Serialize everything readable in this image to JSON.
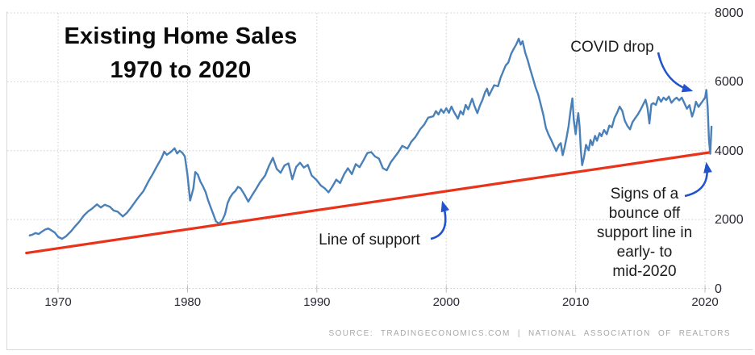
{
  "title": {
    "line1": "Existing Home Sales",
    "line2": "1970 to 2020"
  },
  "annotations": {
    "covid": "COVID drop",
    "support": "Line of support",
    "bounce": "Signs of a\nbounce off\nsupport line in\nearly- to\nmid-2020"
  },
  "source": "SOURCE: TRADINGECONOMICS.COM | NATIONAL ASSOCIATION OF REALTORS",
  "colors": {
    "series_blue": "#4a80b8",
    "support_red": "#e8331a",
    "arrow_blue": "#2153cc",
    "grid_gray": "#cccccc",
    "border_gray": "#d9d9d9",
    "tick_text": "#2b2733",
    "source_text": "#a8a8a8"
  },
  "chart_data": {
    "type": "line",
    "title": "Existing Home Sales 1970 to 2020",
    "xlabel": "",
    "ylabel": "",
    "x_ticks": [
      1970,
      1980,
      1990,
      2000,
      2010,
      2020
    ],
    "y_ticks": [
      0,
      2000,
      4000,
      6000,
      8000
    ],
    "xlim": [
      1966.07,
      2020.37
    ],
    "ylim": [
      0,
      8000
    ],
    "grid": "dotted",
    "legend": "none",
    "series": [
      {
        "name": "existing-home-sales",
        "points": [
          [
            1967.8,
            1540
          ],
          [
            1968.0,
            1560
          ],
          [
            1968.25,
            1610
          ],
          [
            1968.5,
            1580
          ],
          [
            1968.75,
            1650
          ],
          [
            1969.0,
            1710
          ],
          [
            1969.25,
            1740
          ],
          [
            1969.5,
            1680
          ],
          [
            1969.75,
            1620
          ],
          [
            1970.0,
            1500
          ],
          [
            1970.3,
            1440
          ],
          [
            1970.6,
            1510
          ],
          [
            1971.0,
            1660
          ],
          [
            1971.3,
            1800
          ],
          [
            1971.6,
            1920
          ],
          [
            1972.0,
            2120
          ],
          [
            1972.3,
            2230
          ],
          [
            1972.6,
            2310
          ],
          [
            1973.0,
            2440
          ],
          [
            1973.3,
            2350
          ],
          [
            1973.6,
            2430
          ],
          [
            1974.0,
            2370
          ],
          [
            1974.3,
            2260
          ],
          [
            1974.6,
            2230
          ],
          [
            1975.0,
            2090
          ],
          [
            1975.3,
            2190
          ],
          [
            1975.6,
            2330
          ],
          [
            1976.0,
            2540
          ],
          [
            1976.3,
            2690
          ],
          [
            1976.6,
            2830
          ],
          [
            1977.0,
            3120
          ],
          [
            1977.3,
            3310
          ],
          [
            1977.6,
            3520
          ],
          [
            1978.0,
            3790
          ],
          [
            1978.2,
            3970
          ],
          [
            1978.4,
            3880
          ],
          [
            1978.7,
            3960
          ],
          [
            1979.0,
            4070
          ],
          [
            1979.2,
            3920
          ],
          [
            1979.4,
            4000
          ],
          [
            1979.6,
            3940
          ],
          [
            1979.8,
            3830
          ],
          [
            1980.0,
            3300
          ],
          [
            1980.2,
            2550
          ],
          [
            1980.45,
            2900
          ],
          [
            1980.6,
            3380
          ],
          [
            1980.8,
            3300
          ],
          [
            1981.0,
            3100
          ],
          [
            1981.2,
            2960
          ],
          [
            1981.4,
            2800
          ],
          [
            1981.6,
            2550
          ],
          [
            1981.8,
            2350
          ],
          [
            1982.0,
            2150
          ],
          [
            1982.2,
            1950
          ],
          [
            1982.45,
            1880
          ],
          [
            1982.7,
            1990
          ],
          [
            1982.9,
            2160
          ],
          [
            1983.1,
            2480
          ],
          [
            1983.3,
            2650
          ],
          [
            1983.5,
            2760
          ],
          [
            1983.7,
            2830
          ],
          [
            1983.9,
            2950
          ],
          [
            1984.1,
            2910
          ],
          [
            1984.4,
            2730
          ],
          [
            1984.7,
            2520
          ],
          [
            1985.0,
            2710
          ],
          [
            1985.3,
            2890
          ],
          [
            1985.6,
            3080
          ],
          [
            1986.0,
            3280
          ],
          [
            1986.3,
            3560
          ],
          [
            1986.6,
            3790
          ],
          [
            1986.9,
            3470
          ],
          [
            1987.2,
            3360
          ],
          [
            1987.5,
            3570
          ],
          [
            1987.8,
            3630
          ],
          [
            1988.1,
            3170
          ],
          [
            1988.4,
            3530
          ],
          [
            1988.7,
            3650
          ],
          [
            1989.0,
            3510
          ],
          [
            1989.3,
            3590
          ],
          [
            1989.6,
            3280
          ],
          [
            1990.0,
            3140
          ],
          [
            1990.3,
            2990
          ],
          [
            1990.6,
            2910
          ],
          [
            1990.9,
            2790
          ],
          [
            1991.2,
            2960
          ],
          [
            1991.5,
            3160
          ],
          [
            1991.8,
            3060
          ],
          [
            1992.1,
            3310
          ],
          [
            1992.4,
            3490
          ],
          [
            1992.7,
            3320
          ],
          [
            1993.0,
            3610
          ],
          [
            1993.3,
            3520
          ],
          [
            1993.6,
            3720
          ],
          [
            1993.9,
            3930
          ],
          [
            1994.2,
            3960
          ],
          [
            1994.5,
            3830
          ],
          [
            1994.8,
            3770
          ],
          [
            1995.1,
            3490
          ],
          [
            1995.4,
            3430
          ],
          [
            1995.7,
            3660
          ],
          [
            1996.0,
            3810
          ],
          [
            1996.3,
            3960
          ],
          [
            1996.6,
            4140
          ],
          [
            1997.0,
            4060
          ],
          [
            1997.3,
            4260
          ],
          [
            1997.6,
            4390
          ],
          [
            1998.0,
            4630
          ],
          [
            1998.3,
            4760
          ],
          [
            1998.6,
            4960
          ],
          [
            1999.0,
            5000
          ],
          [
            1999.2,
            5150
          ],
          [
            1999.4,
            5050
          ],
          [
            1999.6,
            5200
          ],
          [
            1999.8,
            5100
          ],
          [
            2000.0,
            5230
          ],
          [
            2000.2,
            5100
          ],
          [
            2000.4,
            5280
          ],
          [
            2000.6,
            5120
          ],
          [
            2000.9,
            4930
          ],
          [
            2001.1,
            5150
          ],
          [
            2001.3,
            5050
          ],
          [
            2001.5,
            5330
          ],
          [
            2001.7,
            5200
          ],
          [
            2002.0,
            5510
          ],
          [
            2002.2,
            5280
          ],
          [
            2002.4,
            5090
          ],
          [
            2002.6,
            5310
          ],
          [
            2002.8,
            5480
          ],
          [
            2003.0,
            5700
          ],
          [
            2003.15,
            5800
          ],
          [
            2003.3,
            5600
          ],
          [
            2003.5,
            5750
          ],
          [
            2003.7,
            5900
          ],
          [
            2004.0,
            5870
          ],
          [
            2004.2,
            6120
          ],
          [
            2004.4,
            6300
          ],
          [
            2004.6,
            6480
          ],
          [
            2004.8,
            6560
          ],
          [
            2005.0,
            6800
          ],
          [
            2005.2,
            6950
          ],
          [
            2005.4,
            7080
          ],
          [
            2005.6,
            7250
          ],
          [
            2005.75,
            7080
          ],
          [
            2005.9,
            7180
          ],
          [
            2006.1,
            6850
          ],
          [
            2006.3,
            6620
          ],
          [
            2006.5,
            6350
          ],
          [
            2006.7,
            6100
          ],
          [
            2006.9,
            5840
          ],
          [
            2007.1,
            5640
          ],
          [
            2007.3,
            5340
          ],
          [
            2007.5,
            5040
          ],
          [
            2007.7,
            4660
          ],
          [
            2007.9,
            4470
          ],
          [
            2008.1,
            4320
          ],
          [
            2008.3,
            4150
          ],
          [
            2008.5,
            3990
          ],
          [
            2008.7,
            4160
          ],
          [
            2008.85,
            4220
          ],
          [
            2009.0,
            3870
          ],
          [
            2009.15,
            4100
          ],
          [
            2009.3,
            4380
          ],
          [
            2009.45,
            4700
          ],
          [
            2009.6,
            5140
          ],
          [
            2009.75,
            5520
          ],
          [
            2009.85,
            4900
          ],
          [
            2010.0,
            4480
          ],
          [
            2010.1,
            4820
          ],
          [
            2010.2,
            5090
          ],
          [
            2010.3,
            4710
          ],
          [
            2010.4,
            4010
          ],
          [
            2010.5,
            3580
          ],
          [
            2010.65,
            3820
          ],
          [
            2010.8,
            4170
          ],
          [
            2011.0,
            4010
          ],
          [
            2011.15,
            4310
          ],
          [
            2011.3,
            4160
          ],
          [
            2011.5,
            4430
          ],
          [
            2011.65,
            4290
          ],
          [
            2011.85,
            4510
          ],
          [
            2012.0,
            4420
          ],
          [
            2012.2,
            4600
          ],
          [
            2012.4,
            4480
          ],
          [
            2012.6,
            4730
          ],
          [
            2012.8,
            4680
          ],
          [
            2013.0,
            4950
          ],
          [
            2013.2,
            5100
          ],
          [
            2013.4,
            5280
          ],
          [
            2013.6,
            5160
          ],
          [
            2013.8,
            4870
          ],
          [
            2014.0,
            4720
          ],
          [
            2014.2,
            4620
          ],
          [
            2014.4,
            4830
          ],
          [
            2014.6,
            4940
          ],
          [
            2014.8,
            5050
          ],
          [
            2015.0,
            5180
          ],
          [
            2015.2,
            5330
          ],
          [
            2015.4,
            5480
          ],
          [
            2015.55,
            5250
          ],
          [
            2015.7,
            4790
          ],
          [
            2015.85,
            5340
          ],
          [
            2016.0,
            5380
          ],
          [
            2016.2,
            5330
          ],
          [
            2016.4,
            5560
          ],
          [
            2016.6,
            5420
          ],
          [
            2016.8,
            5540
          ],
          [
            2017.0,
            5470
          ],
          [
            2017.2,
            5570
          ],
          [
            2017.4,
            5390
          ],
          [
            2017.6,
            5480
          ],
          [
            2017.8,
            5540
          ],
          [
            2018.0,
            5460
          ],
          [
            2018.2,
            5540
          ],
          [
            2018.4,
            5380
          ],
          [
            2018.6,
            5220
          ],
          [
            2018.8,
            5320
          ],
          [
            2019.0,
            4990
          ],
          [
            2019.15,
            5160
          ],
          [
            2019.3,
            5420
          ],
          [
            2019.5,
            5270
          ],
          [
            2019.7,
            5380
          ],
          [
            2019.85,
            5460
          ],
          [
            2020.0,
            5540
          ],
          [
            2020.1,
            5760
          ],
          [
            2020.2,
            5270
          ],
          [
            2020.3,
            4330
          ],
          [
            2020.4,
            3910
          ],
          [
            2020.5,
            4700
          ]
        ]
      }
    ],
    "support_line": {
      "from": [
        1967.55,
        1030
      ],
      "to": [
        2020.37,
        3950
      ]
    }
  }
}
